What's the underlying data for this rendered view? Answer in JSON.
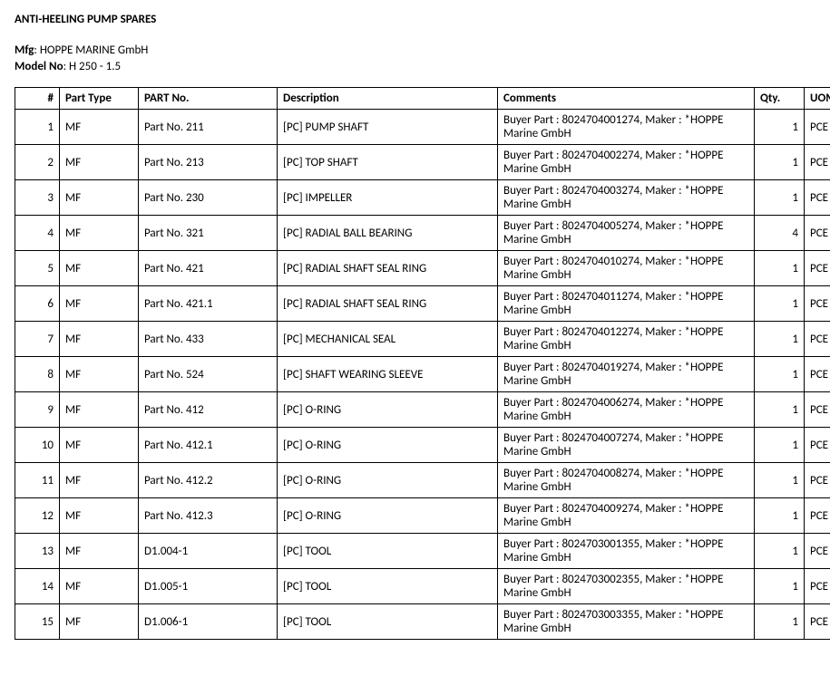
{
  "title": "ANTI-HEELING PUMP SPARES",
  "meta": {
    "mfg_label": "Mfg",
    "mfg_value": "HOPPE MARINE GmbH",
    "model_label": "Model No",
    "model_value": "H 250 - 1.5"
  },
  "table": {
    "columns": [
      "#",
      "Part Type",
      "PART No.",
      "Description",
      "Comments",
      "Qty.",
      "UOM"
    ],
    "rows": [
      {
        "n": "1",
        "pt": "MF",
        "pn": "Part No. 211",
        "desc": "[PC] PUMP SHAFT",
        "com": "Buyer Part : 8024704001274, Maker : *HOPPE Marine GmbH",
        "qty": "1",
        "uom": "PCE"
      },
      {
        "n": "2",
        "pt": "MF",
        "pn": "Part No. 213",
        "desc": "[PC] TOP SHAFT",
        "com": "Buyer Part : 8024704002274, Maker : *HOPPE Marine GmbH",
        "qty": "1",
        "uom": "PCE"
      },
      {
        "n": "3",
        "pt": "MF",
        "pn": "Part No. 230",
        "desc": "[PC] IMPELLER",
        "com": "Buyer Part : 8024704003274, Maker : *HOPPE Marine GmbH",
        "qty": "1",
        "uom": "PCE"
      },
      {
        "n": "4",
        "pt": "MF",
        "pn": "Part No. 321",
        "desc": "[PC] RADIAL BALL BEARING",
        "com": "Buyer Part : 8024704005274, Maker : *HOPPE Marine GmbH",
        "qty": "4",
        "uom": "PCE"
      },
      {
        "n": "5",
        "pt": "MF",
        "pn": "Part No. 421",
        "desc": "[PC] RADIAL SHAFT SEAL RING",
        "com": "Buyer Part : 8024704010274, Maker : *HOPPE Marine GmbH",
        "qty": "1",
        "uom": "PCE"
      },
      {
        "n": "6",
        "pt": "MF",
        "pn": "Part No. 421.1",
        "desc": "[PC] RADIAL SHAFT SEAL RING",
        "com": "Buyer Part : 8024704011274, Maker : *HOPPE Marine GmbH",
        "qty": "1",
        "uom": "PCE"
      },
      {
        "n": "7",
        "pt": "MF",
        "pn": "Part No. 433",
        "desc": "[PC] MECHANICAL SEAL",
        "com": "Buyer Part : 8024704012274, Maker : *HOPPE Marine GmbH",
        "qty": "1",
        "uom": "PCE"
      },
      {
        "n": "8",
        "pt": "MF",
        "pn": "Part No. 524",
        "desc": "[PC] SHAFT WEARING SLEEVE",
        "com": "Buyer Part : 8024704019274, Maker : *HOPPE Marine GmbH",
        "qty": "1",
        "uom": "PCE"
      },
      {
        "n": "9",
        "pt": "MF",
        "pn": "Part No. 412",
        "desc": "[PC] O-RING",
        "com": "Buyer Part : 8024704006274, Maker : *HOPPE Marine GmbH",
        "qty": "1",
        "uom": "PCE"
      },
      {
        "n": "10",
        "pt": "MF",
        "pn": "Part No. 412.1",
        "desc": "[PC] O-RING",
        "com": "Buyer Part : 8024704007274, Maker : *HOPPE Marine GmbH",
        "qty": "1",
        "uom": "PCE"
      },
      {
        "n": "11",
        "pt": "MF",
        "pn": "Part No. 412.2",
        "desc": "[PC] O-RING",
        "com": "Buyer Part : 8024704008274, Maker : *HOPPE Marine GmbH",
        "qty": "1",
        "uom": "PCE"
      },
      {
        "n": "12",
        "pt": "MF",
        "pn": "Part No. 412.3",
        "desc": "[PC] O-RING",
        "com": "Buyer Part : 8024704009274, Maker : *HOPPE Marine GmbH",
        "qty": "1",
        "uom": "PCE"
      },
      {
        "n": "13",
        "pt": "MF",
        "pn": "D1.004-1",
        "desc": "[PC] TOOL",
        "com": "Buyer Part : 8024703001355, Maker : *HOPPE Marine GmbH",
        "qty": "1",
        "uom": "PCE"
      },
      {
        "n": "14",
        "pt": "MF",
        "pn": "D1.005-1",
        "desc": "[PC] TOOL",
        "com": "Buyer Part : 8024703002355, Maker : *HOPPE Marine GmbH",
        "qty": "1",
        "uom": "PCE"
      },
      {
        "n": "15",
        "pt": "MF",
        "pn": "D1.006-1",
        "desc": "[PC] TOOL",
        "com": "Buyer Part : 8024703003355, Maker : *HOPPE Marine GmbH",
        "qty": "1",
        "uom": "PCE"
      }
    ]
  }
}
